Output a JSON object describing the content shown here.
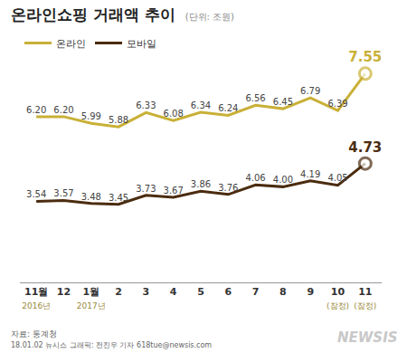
{
  "chart_data": {
    "type": "line",
    "title": "온라인쇼핑 거래액 추이",
    "subtitle": "(단위: 조원)",
    "categories": [
      "11월\n2016년",
      "12",
      "1월\n2017년",
      "2",
      "3",
      "4",
      "5",
      "6",
      "7",
      "8",
      "9",
      "10\n(잠정)",
      "11\n(잠정)"
    ],
    "series": [
      {
        "name": "온라인",
        "color": "#c9b037",
        "values": [
          6.2,
          6.2,
          5.99,
          5.88,
          6.33,
          6.08,
          6.34,
          6.24,
          6.56,
          6.45,
          6.79,
          6.39,
          7.55
        ],
        "value_labels": [
          "6.20",
          "6.20",
          "5.99",
          "5.88",
          "6.33",
          "6.08",
          "6.34",
          "6.24",
          "6.56",
          "6.45",
          "6.79",
          "6.39",
          "7.55"
        ]
      },
      {
        "name": "모바일",
        "color": "#4b2c0f",
        "values": [
          3.54,
          3.57,
          3.48,
          3.45,
          3.73,
          3.67,
          3.86,
          3.76,
          4.06,
          4.0,
          4.19,
          4.05,
          4.73
        ],
        "value_labels": [
          "3.54",
          "3.57",
          "3.48",
          "3.45",
          "3.73",
          "3.67",
          "3.86",
          "3.76",
          "4.06",
          "4.00",
          "4.19",
          "4.05",
          "4.73"
        ]
      }
    ],
    "ylim": [
      1.0,
      8.1
    ],
    "data_labels": true,
    "tick_labels": "x",
    "grid": false,
    "legend": "top-left",
    "marker": "circle",
    "source": "자료: 통계청",
    "credit": "18.01.02 뉴시스 그래픽: 전진우 기자 618tue@newsis.com",
    "watermark": "NEWSIS"
  }
}
